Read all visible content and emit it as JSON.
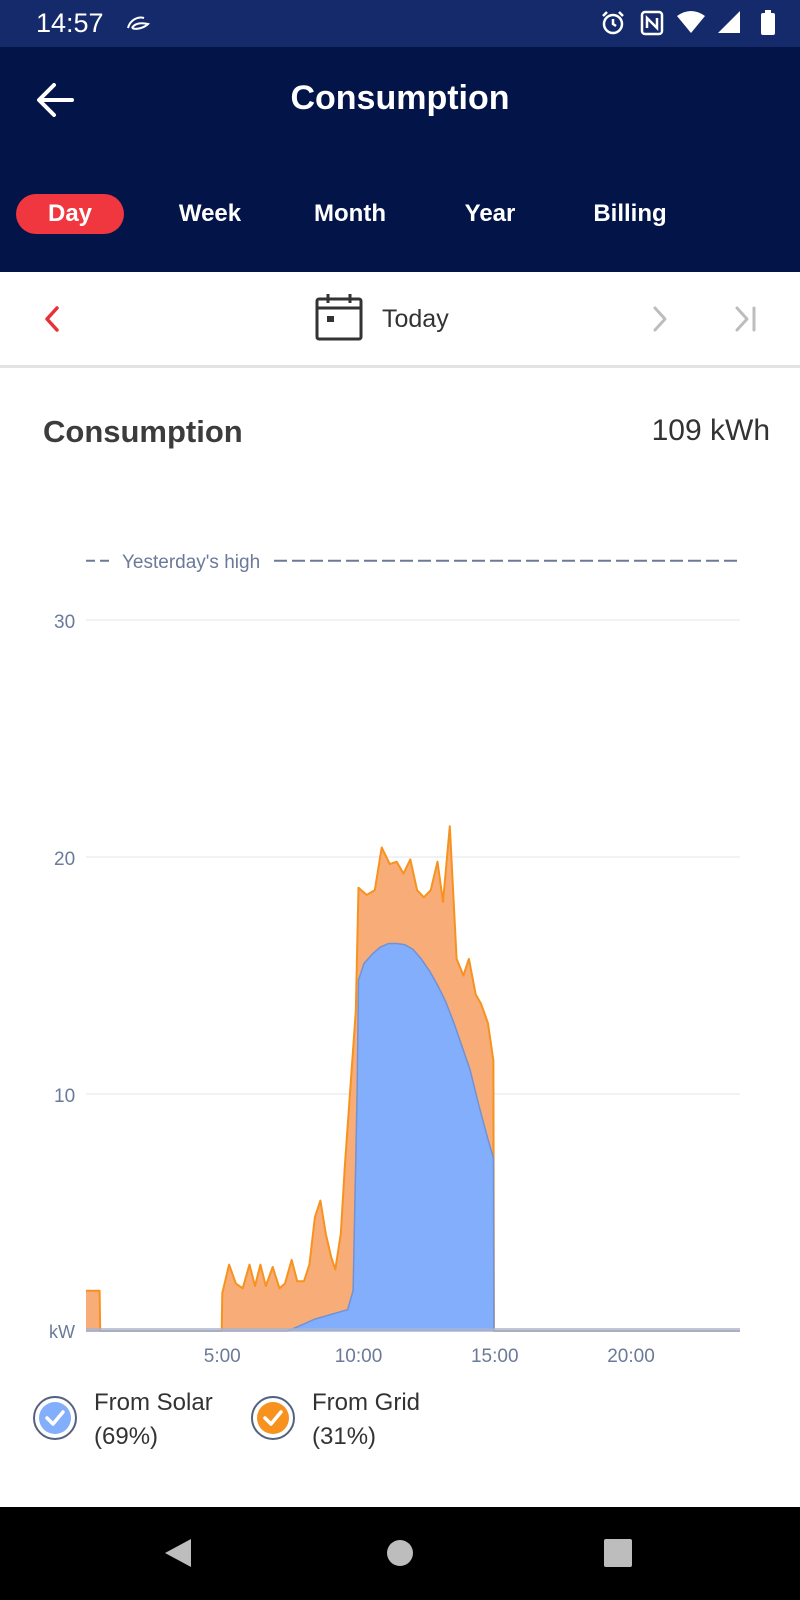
{
  "status_bar": {
    "time": "14:57",
    "icons": [
      "notification-glyph-icon",
      "alarm-icon",
      "nfc-icon",
      "wifi-icon",
      "signal-icon",
      "battery-icon"
    ]
  },
  "header": {
    "title": "Consumption",
    "back_icon": "arrow-left-icon",
    "tabs": [
      {
        "label": "Day",
        "active": true
      },
      {
        "label": "Week",
        "active": false
      },
      {
        "label": "Month",
        "active": false
      },
      {
        "label": "Year",
        "active": false
      },
      {
        "label": "Billing",
        "active": false
      }
    ]
  },
  "date_nav": {
    "label": "Today",
    "icons": [
      "chevron-left-icon",
      "calendar-icon",
      "chevron-right-icon",
      "skip-to-end-icon"
    ]
  },
  "summary": {
    "label": "Consumption",
    "value": "109 kWh"
  },
  "legend": [
    {
      "name": "From Solar",
      "share": "(69%)",
      "color": "#82aefc"
    },
    {
      "name": "From Grid",
      "share": "(31%)",
      "color": "#f7921e"
    }
  ],
  "colors": {
    "header_bg": "#021448",
    "status_bar_bg": "#142a6b",
    "active_tab": "#f0373f",
    "solar_fill": "#82aefc",
    "grid_fill": "#f8ac78",
    "grid_line": "#f7921e",
    "reference_line": "#6b7a99"
  },
  "chart_data": {
    "type": "area",
    "ylabel": "kW",
    "y_ticks": [
      10,
      20,
      30
    ],
    "ylim": [
      0,
      30
    ],
    "xlim": [
      0,
      24
    ],
    "x_tick_labels": [
      {
        "x": 5,
        "label": "5:00"
      },
      {
        "x": 10,
        "label": "10:00"
      },
      {
        "x": 15,
        "label": "15:00"
      },
      {
        "x": 20,
        "label": "20:00"
      }
    ],
    "reference_line": {
      "label": "Yesterday's high",
      "value": 32.5
    },
    "series": [
      {
        "name": "From Solar",
        "points": [
          [
            0,
            0
          ],
          [
            7.4,
            0
          ],
          [
            7.8,
            0.2
          ],
          [
            8.4,
            0.5
          ],
          [
            9.0,
            0.7
          ],
          [
            9.6,
            0.9
          ],
          [
            9.8,
            1.7
          ],
          [
            9.95,
            10
          ],
          [
            10.0,
            14.8
          ],
          [
            10.2,
            15.5
          ],
          [
            10.5,
            15.9
          ],
          [
            10.8,
            16.2
          ],
          [
            11.1,
            16.35
          ],
          [
            11.4,
            16.35
          ],
          [
            11.7,
            16.3
          ],
          [
            12.0,
            16.1
          ],
          [
            12.3,
            15.7
          ],
          [
            12.6,
            15.2
          ],
          [
            12.9,
            14.6
          ],
          [
            13.2,
            13.9
          ],
          [
            13.5,
            13.0
          ],
          [
            13.8,
            12.0
          ],
          [
            14.1,
            11.0
          ],
          [
            14.4,
            9.6
          ],
          [
            14.7,
            8.3
          ],
          [
            14.95,
            7.3
          ],
          [
            14.97,
            0
          ],
          [
            24,
            0
          ]
        ]
      },
      {
        "name": "From Grid",
        "points": [
          [
            0,
            1.7
          ],
          [
            0.5,
            1.7
          ],
          [
            0.52,
            0
          ],
          [
            4.98,
            0
          ],
          [
            5.0,
            1.6
          ],
          [
            5.25,
            2.8
          ],
          [
            5.5,
            2.0
          ],
          [
            5.75,
            1.8
          ],
          [
            6.0,
            2.8
          ],
          [
            6.2,
            1.9
          ],
          [
            6.4,
            2.8
          ],
          [
            6.6,
            1.9
          ],
          [
            6.85,
            2.7
          ],
          [
            7.1,
            1.8
          ],
          [
            7.3,
            2.0
          ],
          [
            7.55,
            3.0
          ],
          [
            7.75,
            2.1
          ],
          [
            8.0,
            2.1
          ],
          [
            8.2,
            2.8
          ],
          [
            8.4,
            4.8
          ],
          [
            8.6,
            5.5
          ],
          [
            8.8,
            4.1
          ],
          [
            9.0,
            3.1
          ],
          [
            9.15,
            2.6
          ],
          [
            9.35,
            4.1
          ],
          [
            9.5,
            7.0
          ],
          [
            9.9,
            13.5
          ],
          [
            10.0,
            18.7
          ],
          [
            10.3,
            18.4
          ],
          [
            10.6,
            18.6
          ],
          [
            10.85,
            20.4
          ],
          [
            11.15,
            19.7
          ],
          [
            11.4,
            19.8
          ],
          [
            11.65,
            19.3
          ],
          [
            11.9,
            19.9
          ],
          [
            12.15,
            18.6
          ],
          [
            12.4,
            18.3
          ],
          [
            12.65,
            18.6
          ],
          [
            12.9,
            19.8
          ],
          [
            13.1,
            18.1
          ],
          [
            13.35,
            21.3
          ],
          [
            13.6,
            15.7
          ],
          [
            13.85,
            15.0
          ],
          [
            14.05,
            15.7
          ],
          [
            14.3,
            14.2
          ],
          [
            14.5,
            13.8
          ],
          [
            14.75,
            13.0
          ],
          [
            14.95,
            11.4
          ],
          [
            14.97,
            0
          ],
          [
            24,
            0
          ]
        ]
      }
    ],
    "grid": true,
    "legend_position": "bottom"
  }
}
